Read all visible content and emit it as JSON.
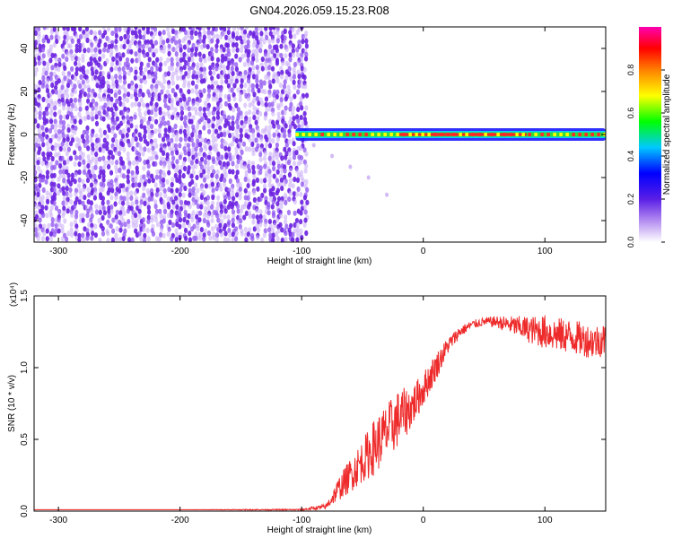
{
  "title": "GN04.2026.059.15.23.R08",
  "chart_data": [
    {
      "type": "heatmap",
      "title": "GN04.2026.059.15.23.R08",
      "xlabel": "Height of straight line (km)",
      "ylabel": "Frequency (Hz)",
      "xlim": [
        -320,
        150
      ],
      "ylim": [
        -50,
        50
      ],
      "xticks": [
        -300,
        -200,
        -100,
        0,
        100
      ],
      "yticks": [
        -40,
        -20,
        0,
        20,
        40
      ],
      "colorbar": {
        "label": "Normalized spectral amplitude",
        "range": [
          0,
          1
        ],
        "ticks": [
          "0.0",
          "0.2",
          "0.4",
          "0.6",
          "0.8"
        ],
        "colormap": [
          "#ffffff",
          "#8a2be2",
          "#0000ff",
          "#00c8ff",
          "#00ff00",
          "#ffff00",
          "#ff8000",
          "#ff0000",
          "#ff00b0"
        ]
      },
      "noise_region": {
        "x_range": [
          -320,
          -95
        ],
        "freq_range": [
          -50,
          50
        ],
        "amplitude": 0.15
      },
      "signal_band": {
        "x_range": [
          -105,
          150
        ],
        "center_freq": 0,
        "width_hz": 4,
        "peak_amplitude": 0.95
      },
      "faint_trail": [
        {
          "x": -90,
          "freq": -5
        },
        {
          "x": -75,
          "freq": -10
        },
        {
          "x": -60,
          "freq": -15
        },
        {
          "x": -45,
          "freq": -20
        },
        {
          "x": -30,
          "freq": -28
        }
      ],
      "grid": false
    },
    {
      "type": "line",
      "xlabel": "Height of straight line (km)",
      "ylabel": "SNR (10 * v/v)",
      "yscale_label": "(x10⁴)",
      "xlim": [
        -320,
        150
      ],
      "ylim": [
        0,
        1.5
      ],
      "xticks": [
        -300,
        -200,
        -100,
        0,
        100
      ],
      "yticks": [
        "0.0",
        "0.5",
        "1.0",
        "1.5"
      ],
      "color": "#ee2a2a",
      "series": [
        {
          "x": [
            -320,
            -200,
            -100,
            -80,
            -70,
            -60,
            -50,
            -40,
            -30,
            -20,
            -10,
            0,
            10,
            20,
            30,
            40,
            50,
            60,
            70,
            80,
            90,
            100,
            110,
            120,
            130,
            140,
            150
          ],
          "y": [
            0.01,
            0.01,
            0.01,
            0.03,
            0.15,
            0.25,
            0.35,
            0.45,
            0.55,
            0.65,
            0.72,
            0.85,
            1.0,
            1.15,
            1.25,
            1.3,
            1.32,
            1.32,
            1.3,
            1.28,
            1.26,
            1.25,
            1.23,
            1.22,
            1.2,
            1.18,
            1.2
          ],
          "noise_amplitude": [
            0,
            0,
            0.005,
            0.02,
            0.08,
            0.12,
            0.15,
            0.2,
            0.2,
            0.2,
            0.15,
            0.12,
            0.1,
            0.06,
            0.04,
            0.03,
            0.03,
            0.04,
            0.06,
            0.08,
            0.1,
            0.12,
            0.12,
            0.12,
            0.12,
            0.12,
            0.12
          ]
        }
      ],
      "grid": false
    }
  ]
}
